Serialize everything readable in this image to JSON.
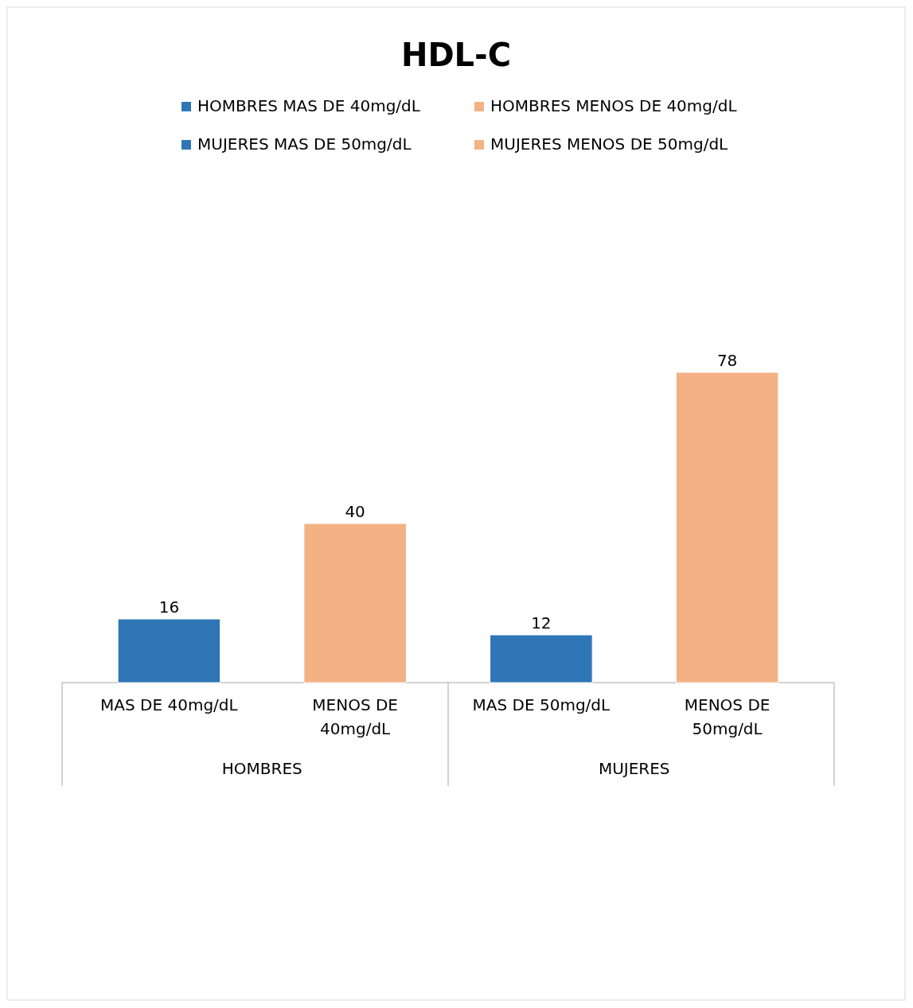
{
  "chart_data": {
    "type": "bar",
    "title": "HDL-C",
    "categories": [
      "MAS DE 40mg/dL",
      "MENOS DE 40mg/dL",
      "MAS DE 50mg/dL",
      "MENOS DE 50mg/dL"
    ],
    "series": [
      {
        "name": "HOMBRES MAS DE 40mg/dL",
        "color": "#2e75b6",
        "values": [
          16,
          null,
          null,
          null
        ]
      },
      {
        "name": "HOMBRES MENOS DE 40mg/dL",
        "color": "#f4b183",
        "values": [
          null,
          40,
          null,
          null
        ]
      },
      {
        "name": "MUJERES MAS DE 50mg/dL",
        "color": "#2e75b6",
        "values": [
          null,
          null,
          12,
          null
        ]
      },
      {
        "name": "MUJERES MENOS DE 50mg/dL",
        "color": "#f4b183",
        "values": [
          null,
          null,
          null,
          78
        ]
      }
    ],
    "annotations": [
      "HOMBRES",
      "MUJERES"
    ],
    "data_labels": true,
    "legend": "top"
  }
}
